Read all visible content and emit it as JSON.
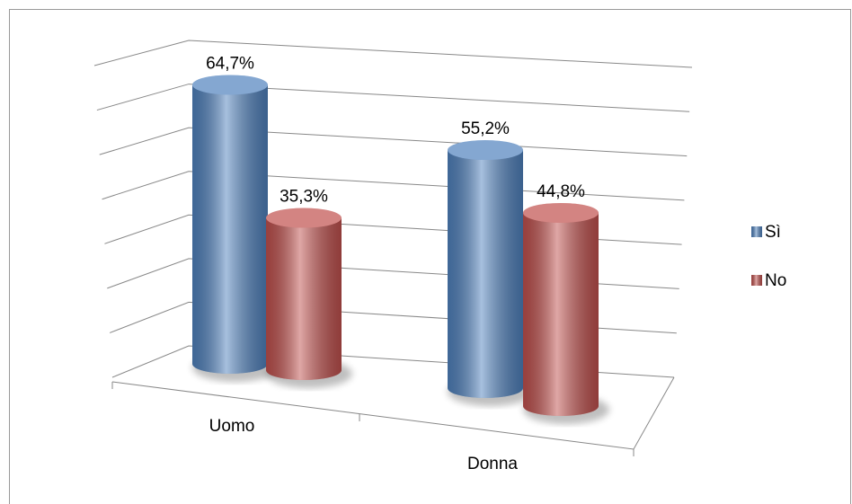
{
  "chart_data": {
    "type": "bar",
    "categories": [
      "Uomo",
      "Donna"
    ],
    "series": [
      {
        "name": "Sì",
        "color": "#4f81bd",
        "values": [
          64.7,
          55.2
        ],
        "value_labels": [
          "64,7%",
          "55,2%"
        ]
      },
      {
        "name": "No",
        "color": "#c0504d",
        "values": [
          35.3,
          44.8
        ],
        "value_labels": [
          "35,3%",
          "44,8%"
        ]
      }
    ],
    "ylim": [
      0,
      70
    ],
    "yticks": [
      0,
      10,
      20,
      30,
      40,
      50,
      60,
      70
    ],
    "grid": true,
    "legend": "right"
  }
}
